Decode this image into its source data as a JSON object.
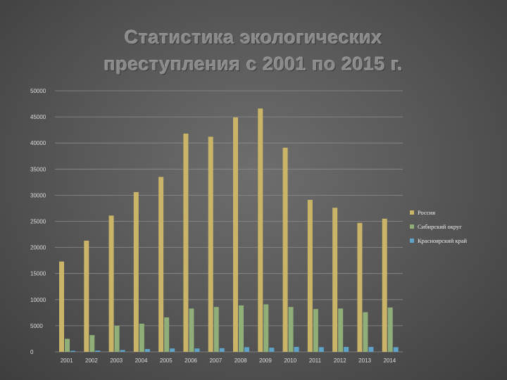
{
  "slide": {
    "title_line1": "Статистика экологических",
    "title_line2": "преступления с 2001 по 2015 г."
  },
  "chart_data": {
    "type": "bar",
    "categories": [
      "2001",
      "2002",
      "2003",
      "2004",
      "2005",
      "2006",
      "2007",
      "2008",
      "2009",
      "2010",
      "2011",
      "2012",
      "2013",
      "2014"
    ],
    "series": [
      {
        "name": "Россия",
        "color": "#c9b468",
        "values": [
          17300,
          21300,
          26100,
          30600,
          33500,
          41800,
          41200,
          44900,
          46600,
          39100,
          29100,
          27600,
          24700,
          25500
        ]
      },
      {
        "name": "Сибирский округ",
        "color": "#8fae78",
        "values": [
          2500,
          3200,
          5000,
          5400,
          6600,
          8300,
          8600,
          8900,
          9100,
          8600,
          8200,
          8300,
          7600,
          8500
        ]
      },
      {
        "name": "Красноярский край",
        "color": "#5fa3c8",
        "values": [
          200,
          250,
          350,
          550,
          650,
          650,
          700,
          900,
          800,
          950,
          900,
          950,
          950,
          900
        ]
      }
    ],
    "ylim": [
      0,
      50000
    ],
    "yticks": [
      "0",
      "5000",
      "10000",
      "15000",
      "20000",
      "25000",
      "30000",
      "35000",
      "40000",
      "45000",
      "50000"
    ],
    "grid": true,
    "legend": "right"
  }
}
